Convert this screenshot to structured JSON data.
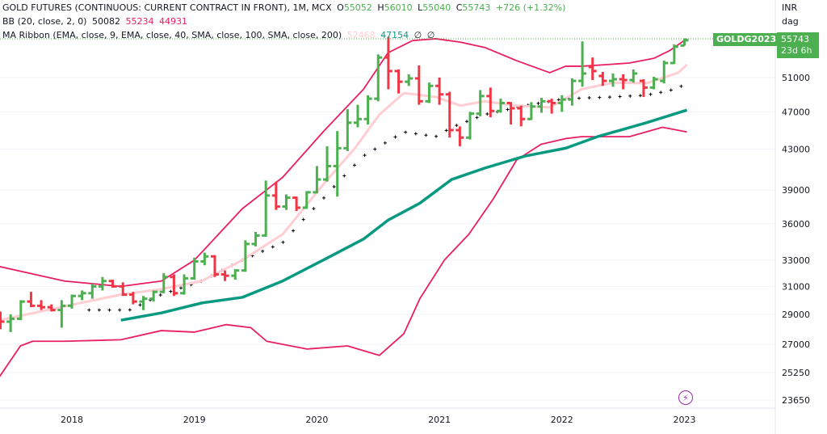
{
  "header": {
    "symbol_title": "GOLD FUTURES (CONTINUOUS: CURRENT CONTRACT IN FRONT), 1M, MCX",
    "o_label": "O",
    "o_value": "55052",
    "h_label": "H",
    "h_value": "56010",
    "l_label": "L",
    "l_value": "55040",
    "c_label": "C",
    "c_value": "55743",
    "change": "+726 (+1.32%)"
  },
  "indicators": {
    "bb_label": "BB (20, close, 2, 0)",
    "bb_basis": "50082",
    "bb_upper": "55234",
    "bb_lower": "44931",
    "ma_label": "MA Ribbon (EMA, close, 9, EMA, close, 40, SMA, close, 100, SMA, close, 200)",
    "ma1": "52468",
    "ma2": "47154",
    "ma3": "∅",
    "ma4": "∅"
  },
  "price_axis": {
    "currency": "INR",
    "unit": "dag",
    "ticks": [
      51000,
      47000,
      43000,
      39000,
      36000,
      33000,
      31000,
      29000,
      27000,
      25250,
      23650
    ],
    "last_price": "55743",
    "countdown": "23d 6h",
    "symbol_tag": "GOLDG2023"
  },
  "colors": {
    "up": "#4caf50",
    "down": "#f23645",
    "bb": "#e91e63",
    "ema9": "#ffcdd2",
    "ema40": "#089981",
    "basis": "#000000"
  },
  "icons": {
    "replay": "lightning-icon"
  },
  "chart_data": {
    "type": "ohlc",
    "title": "GOLD FUTURES (CONTINUOUS: CURRENT CONTRACT IN FRONT), 1M, MCX",
    "start_month": "2017-06",
    "scale": "log",
    "x_ticks": [
      "2018",
      "2019",
      "2020",
      "2021",
      "2022",
      "2023"
    ],
    "ohlc": [
      [
        29000,
        29200,
        28000,
        28500
      ],
      [
        28500,
        29000,
        27800,
        28700
      ],
      [
        28700,
        30000,
        28600,
        29900
      ],
      [
        29900,
        30600,
        29500,
        29600
      ],
      [
        29600,
        30000,
        29300,
        29500
      ],
      [
        29500,
        29700,
        29200,
        29300
      ],
      [
        29300,
        30000,
        28100,
        29600
      ],
      [
        29600,
        30400,
        29400,
        30300
      ],
      [
        30300,
        30700,
        30000,
        30500
      ],
      [
        30500,
        31200,
        30100,
        31000
      ],
      [
        31000,
        31700,
        30700,
        31400
      ],
      [
        31400,
        31500,
        30900,
        31000
      ],
      [
        31000,
        31300,
        30300,
        30400
      ],
      [
        30400,
        30600,
        29700,
        29900
      ],
      [
        29900,
        30300,
        29300,
        30100
      ],
      [
        30100,
        30700,
        29900,
        30600
      ],
      [
        30600,
        32000,
        30500,
        31700
      ],
      [
        31700,
        31900,
        30300,
        30500
      ],
      [
        30500,
        31900,
        30400,
        31600
      ],
      [
        31600,
        33200,
        31500,
        32900
      ],
      [
        32900,
        33600,
        32600,
        33300
      ],
      [
        33300,
        33400,
        31700,
        31900
      ],
      [
        31900,
        32200,
        31400,
        31800
      ],
      [
        31800,
        32300,
        31500,
        32200
      ],
      [
        32200,
        34600,
        32100,
        34300
      ],
      [
        34300,
        35300,
        34100,
        35000
      ],
      [
        35000,
        39900,
        34900,
        38500
      ],
      [
        38500,
        39800,
        37200,
        37500
      ],
      [
        37500,
        38600,
        37200,
        38300
      ],
      [
        38300,
        38400,
        37100,
        37400
      ],
      [
        37400,
        38900,
        37300,
        38800
      ],
      [
        38800,
        41300,
        38700,
        40000
      ],
      [
        40000,
        43300,
        39800,
        41300
      ],
      [
        41300,
        44900,
        38400,
        43100
      ],
      [
        43100,
        47300,
        42800,
        45800
      ],
      [
        45800,
        47800,
        45300,
        46200
      ],
      [
        46200,
        48900,
        45600,
        48500
      ],
      [
        48500,
        53900,
        48200,
        53500
      ],
      [
        53500,
        56200,
        49600,
        51800
      ],
      [
        51800,
        52000,
        49100,
        50500
      ],
      [
        50500,
        51400,
        50000,
        50900
      ],
      [
        50900,
        52500,
        47800,
        48200
      ],
      [
        48200,
        50400,
        48000,
        50000
      ],
      [
        50000,
        51000,
        47800,
        49000
      ],
      [
        49000,
        49300,
        44200,
        45000
      ],
      [
        45000,
        45400,
        43300,
        44200
      ],
      [
        44200,
        47000,
        44000,
        46800
      ],
      [
        46800,
        49500,
        46500,
        48800
      ],
      [
        48800,
        49800,
        46400,
        47100
      ],
      [
        47100,
        48500,
        46900,
        48000
      ],
      [
        48000,
        48100,
        45600,
        47400
      ],
      [
        47400,
        47700,
        45400,
        46200
      ],
      [
        46200,
        48100,
        46100,
        47600
      ],
      [
        47600,
        48600,
        46900,
        48200
      ],
      [
        48200,
        48500,
        46800,
        48000
      ],
      [
        48000,
        48900,
        47000,
        48400
      ],
      [
        48400,
        50900,
        47700,
        50600
      ],
      [
        50600,
        55600,
        49900,
        51500
      ],
      [
        52300,
        53500,
        50700,
        51800
      ],
      [
        51200,
        51700,
        50000,
        50600
      ],
      [
        50600,
        51500,
        49900,
        50800
      ],
      [
        50800,
        51400,
        49600,
        50700
      ],
      [
        50700,
        52000,
        50400,
        51500
      ],
      [
        50600,
        50800,
        48700,
        49800
      ],
      [
        49800,
        51100,
        49600,
        50800
      ],
      [
        50600,
        53100,
        50300,
        52800
      ],
      [
        52800,
        55200,
        52700,
        54900
      ],
      [
        55052,
        56010,
        55040,
        55743
      ]
    ],
    "series": [
      {
        "name": "BB upper",
        "points": [
          [
            2017.41,
            32500
          ],
          [
            2017.94,
            31400
          ],
          [
            2018.4,
            31000
          ],
          [
            2018.73,
            31400
          ],
          [
            2019.0,
            33000
          ],
          [
            2019.39,
            37300
          ],
          [
            2019.72,
            40200
          ],
          [
            2020.05,
            44800
          ],
          [
            2020.38,
            49600
          ],
          [
            2020.58,
            54100
          ],
          [
            2020.78,
            55700
          ],
          [
            2020.97,
            55950
          ],
          [
            2021.17,
            55500
          ],
          [
            2021.37,
            54800
          ],
          [
            2021.63,
            53100
          ],
          [
            2021.9,
            51600
          ],
          [
            2022.03,
            52400
          ],
          [
            2022.16,
            52400
          ],
          [
            2022.36,
            52600
          ],
          [
            2022.55,
            52800
          ],
          [
            2022.75,
            53400
          ],
          [
            2022.88,
            54400
          ],
          [
            2023.02,
            55950
          ]
        ]
      },
      {
        "name": "BB lower",
        "points": [
          [
            2017.41,
            25000
          ],
          [
            2017.58,
            26900
          ],
          [
            2017.68,
            27200
          ],
          [
            2017.94,
            27200
          ],
          [
            2018.4,
            27300
          ],
          [
            2018.73,
            27900
          ],
          [
            2019.0,
            27800
          ],
          [
            2019.26,
            28300
          ],
          [
            2019.46,
            28100
          ],
          [
            2019.59,
            27200
          ],
          [
            2019.92,
            26700
          ],
          [
            2020.25,
            26900
          ],
          [
            2020.51,
            26300
          ],
          [
            2020.71,
            27700
          ],
          [
            2020.84,
            30100
          ],
          [
            2021.04,
            33000
          ],
          [
            2021.24,
            35100
          ],
          [
            2021.44,
            38200
          ],
          [
            2021.63,
            41900
          ],
          [
            2021.83,
            43500
          ],
          [
            2022.03,
            44100
          ],
          [
            2022.16,
            44300
          ],
          [
            2022.55,
            44300
          ],
          [
            2022.82,
            45300
          ],
          [
            2023.02,
            44800
          ]
        ]
      },
      {
        "name": "BB basis",
        "points": [
          [
            2018.14,
            29300
          ],
          [
            2018.47,
            29300
          ],
          [
            2018.73,
            30400
          ],
          [
            2019.06,
            31400
          ],
          [
            2019.39,
            33000
          ],
          [
            2019.72,
            34400
          ],
          [
            2020.05,
            38200
          ],
          [
            2020.38,
            42300
          ],
          [
            2020.71,
            44800
          ],
          [
            2020.97,
            44300
          ],
          [
            2021.1,
            45300
          ],
          [
            2021.37,
            46700
          ],
          [
            2021.7,
            47700
          ],
          [
            2022.03,
            48500
          ],
          [
            2022.42,
            48700
          ],
          [
            2022.69,
            48900
          ],
          [
            2022.88,
            49450
          ],
          [
            2023.02,
            50200
          ]
        ]
      },
      {
        "name": "EMA 9",
        "points": [
          [
            2017.41,
            28600
          ],
          [
            2018.07,
            29800
          ],
          [
            2018.4,
            30400
          ],
          [
            2018.73,
            30800
          ],
          [
            2019.06,
            31400
          ],
          [
            2019.39,
            33000
          ],
          [
            2019.72,
            35100
          ],
          [
            2020.05,
            39500
          ],
          [
            2020.31,
            43100
          ],
          [
            2020.51,
            46700
          ],
          [
            2020.71,
            49150
          ],
          [
            2020.97,
            48700
          ],
          [
            2021.17,
            47700
          ],
          [
            2021.37,
            48200
          ],
          [
            2021.63,
            47700
          ],
          [
            2021.9,
            47500
          ],
          [
            2022.16,
            49600
          ],
          [
            2022.42,
            50400
          ],
          [
            2022.69,
            50300
          ],
          [
            2022.95,
            51600
          ],
          [
            2023.02,
            52600
          ]
        ]
      },
      {
        "name": "EMA 40",
        "points": [
          [
            2018.4,
            28600
          ],
          [
            2018.73,
            29100
          ],
          [
            2019.06,
            29800
          ],
          [
            2019.39,
            30200
          ],
          [
            2019.72,
            31400
          ],
          [
            2020.05,
            33000
          ],
          [
            2020.38,
            34700
          ],
          [
            2020.58,
            36300
          ],
          [
            2020.84,
            37800
          ],
          [
            2021.1,
            40000
          ],
          [
            2021.37,
            41100
          ],
          [
            2021.7,
            42300
          ],
          [
            2022.03,
            43100
          ],
          [
            2022.29,
            44300
          ],
          [
            2022.69,
            45800
          ],
          [
            2023.02,
            47200
          ]
        ]
      }
    ]
  }
}
